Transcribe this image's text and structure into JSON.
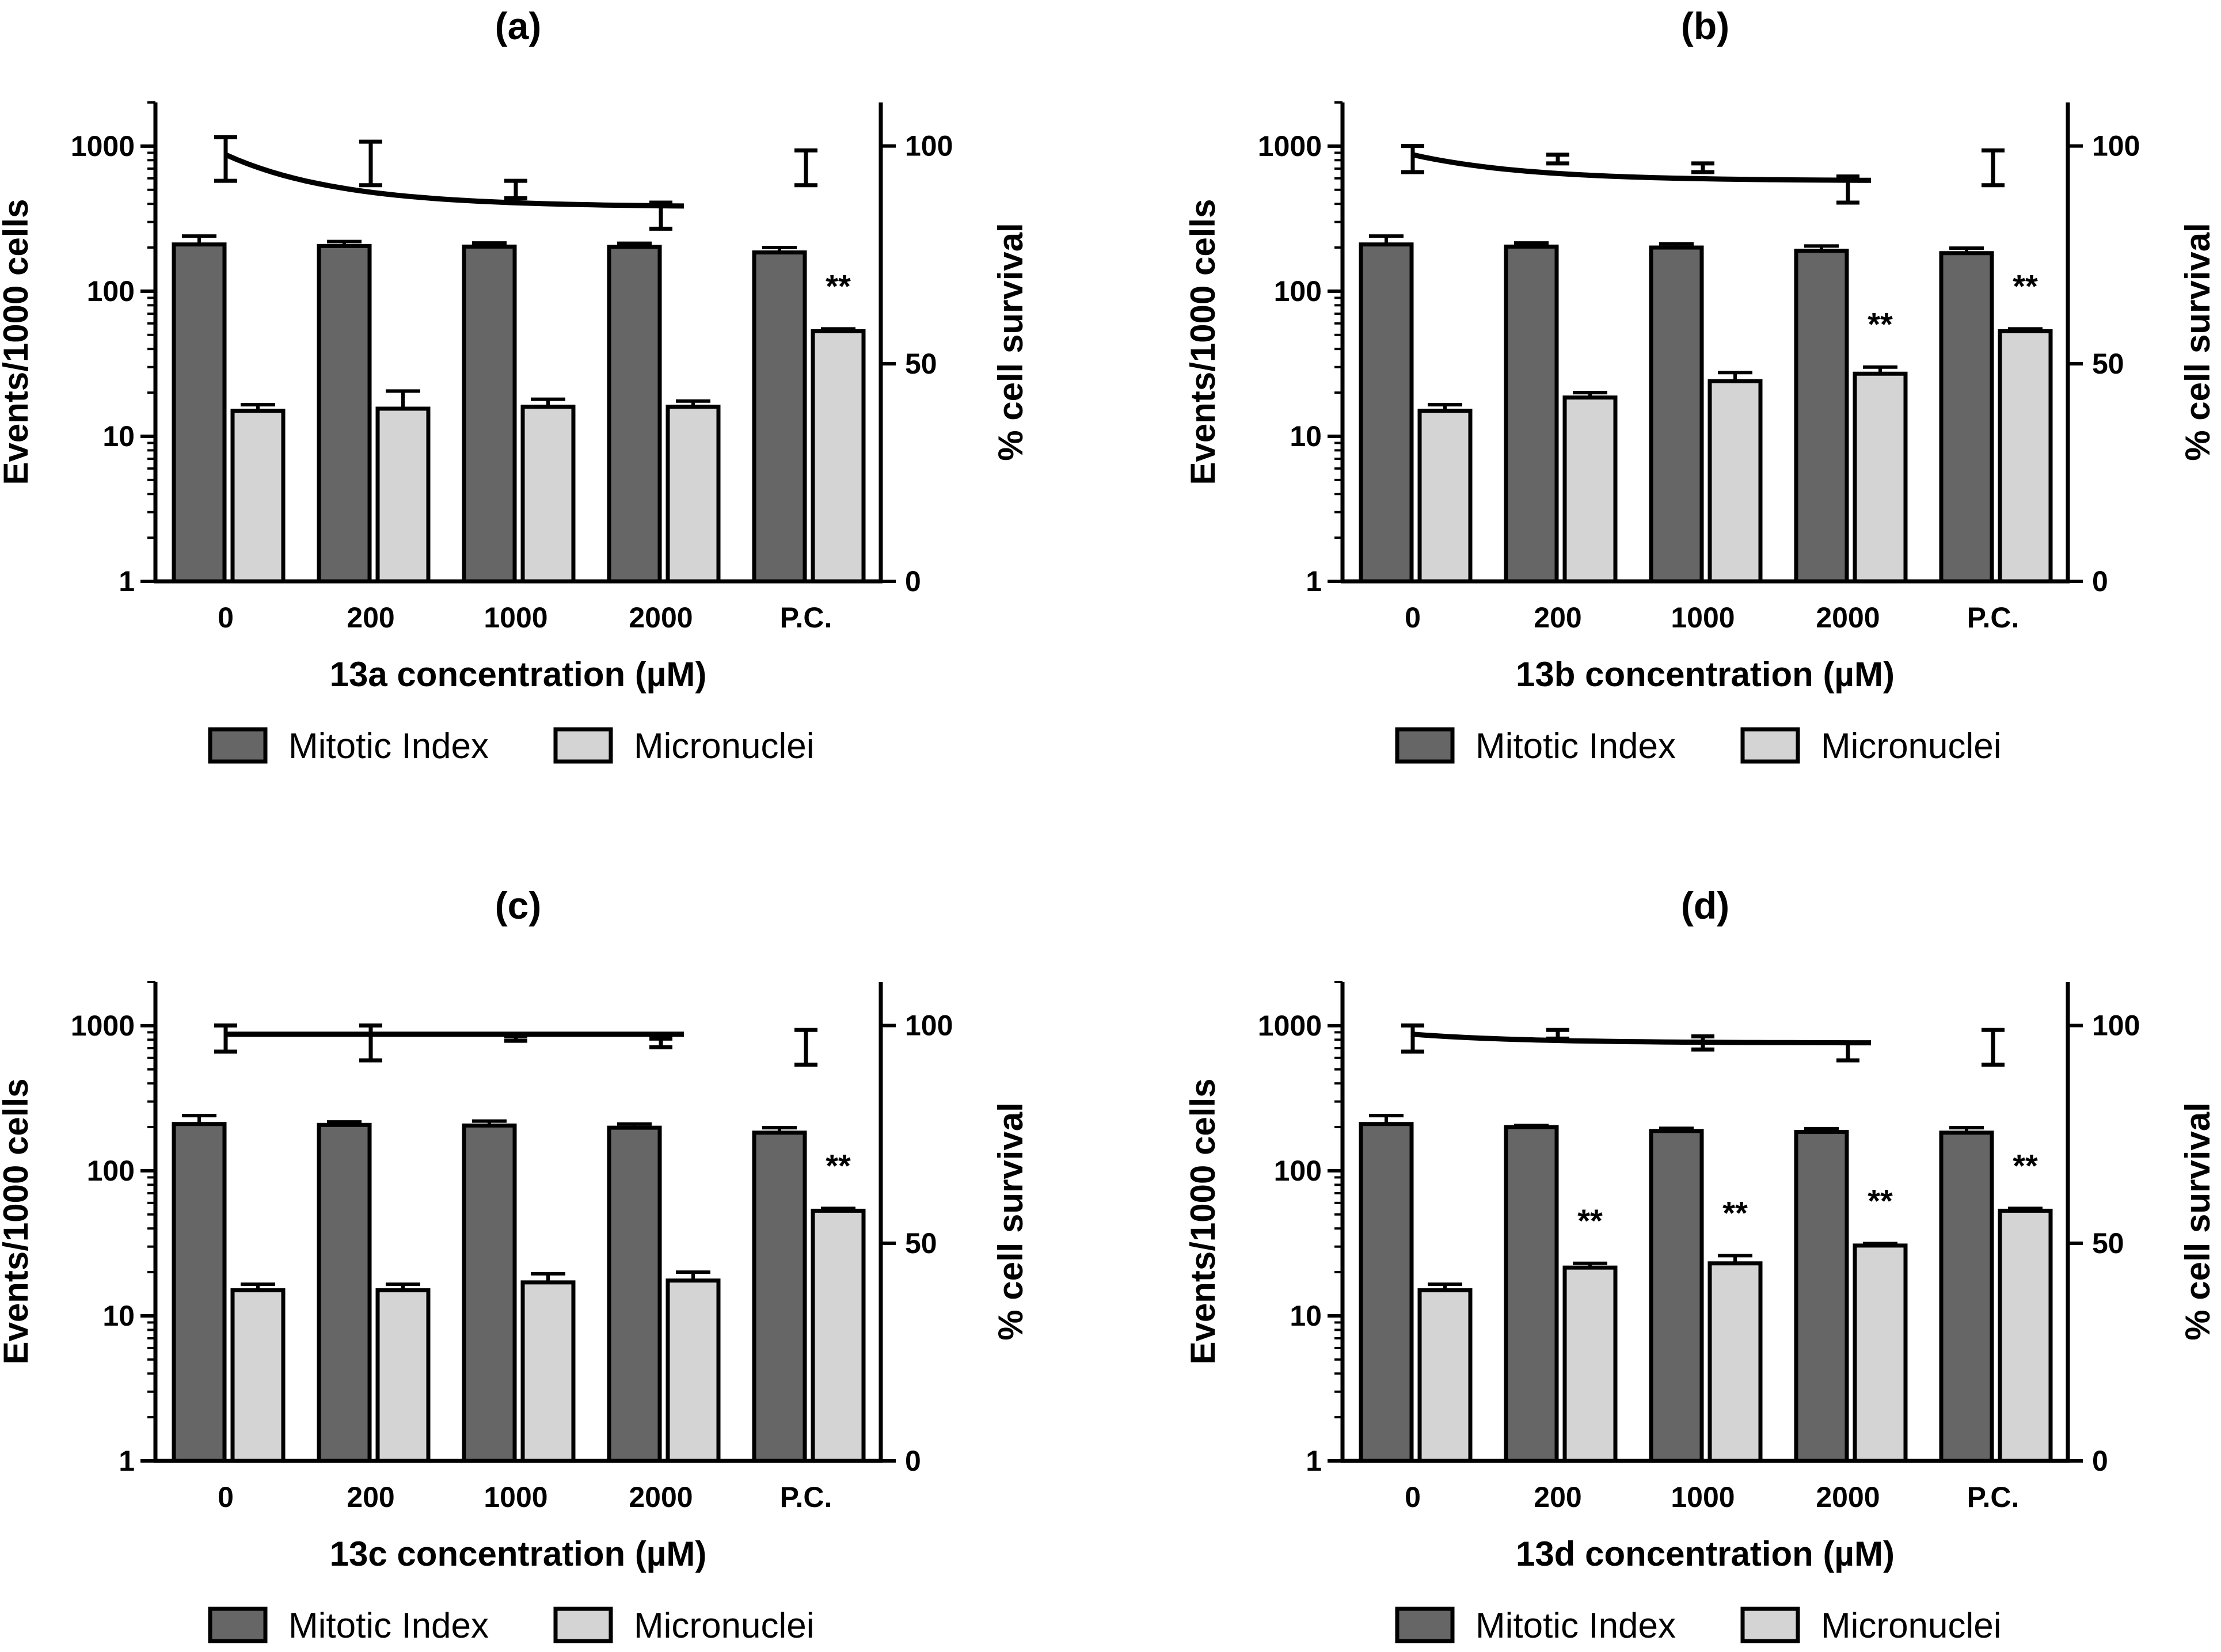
{
  "colors": {
    "mitotic_index": "#666666",
    "micronuclei": "#d4d4d4",
    "stroke": "#000000",
    "background": "#ffffff"
  },
  "chart_data": [
    {
      "type": "bar",
      "panel": "(a)",
      "title": "(a)",
      "xlabel": "13a concentration (µM)",
      "ylabel": "Events/1000 cells",
      "y2label": "% cell survival",
      "yscale": "log",
      "ylim": [
        1,
        2000
      ],
      "yticks": [
        "1",
        "10",
        "100",
        "1000"
      ],
      "y2lim": [
        0,
        110
      ],
      "y2ticks": [
        "0",
        "50",
        "100"
      ],
      "categories": [
        "0",
        "200",
        "1000",
        "2000",
        "P.C."
      ],
      "series": [
        {
          "name": "Mitotic Index",
          "values": [
            210,
            205,
            203,
            202,
            185
          ],
          "errors": [
            30,
            15,
            12,
            12,
            15
          ]
        },
        {
          "name": "Micronuclei",
          "values": [
            15,
            15.5,
            16,
            16,
            53
          ],
          "errors": [
            1.5,
            5,
            2,
            1.5,
            2
          ]
        }
      ],
      "significance": [
        "",
        "",
        "",
        "",
        "**"
      ],
      "survival": {
        "means": [
          97,
          96,
          90,
          84,
          95
        ],
        "errors": [
          5,
          5,
          2,
          3,
          4
        ],
        "fit_line_end": "2000"
      },
      "legend": [
        "Mitotic Index",
        "Micronuclei"
      ]
    },
    {
      "type": "bar",
      "panel": "(b)",
      "title": "(b)",
      "xlabel": "13b concentration (µM)",
      "ylabel": "Events/1000 cells",
      "y2label": "% cell survival",
      "yscale": "log",
      "ylim": [
        1,
        2000
      ],
      "yticks": [
        "1",
        "10",
        "100",
        "1000"
      ],
      "y2lim": [
        0,
        110
      ],
      "y2ticks": [
        "0",
        "50",
        "100"
      ],
      "categories": [
        "0",
        "200",
        "1000",
        "2000",
        "P.C."
      ],
      "series": [
        {
          "name": "Mitotic Index",
          "values": [
            210,
            203,
            200,
            190,
            183
          ],
          "errors": [
            30,
            12,
            12,
            15,
            15
          ]
        },
        {
          "name": "Micronuclei",
          "values": [
            15,
            18.5,
            24,
            27,
            53
          ],
          "errors": [
            1.5,
            1.5,
            3.5,
            3,
            2
          ]
        },
        {
          "name": "% cell survival",
          "values": [
            97,
            97,
            95,
            90,
            95
          ],
          "errors": [
            3,
            1,
            1,
            3,
            4
          ]
        }
      ],
      "significance": [
        "",
        "",
        "",
        "**",
        "**"
      ],
      "legend": [
        "Mitotic Index",
        "Micronuclei"
      ]
    },
    {
      "type": "bar",
      "panel": "(c)",
      "title": "(c)",
      "xlabel": "13c concentration (µM)",
      "ylabel": "Events/1000 cells",
      "y2label": "% cell survival",
      "yscale": "log",
      "ylim": [
        1,
        2000
      ],
      "yticks": [
        "1",
        "10",
        "100",
        "1000"
      ],
      "y2lim": [
        0,
        110
      ],
      "y2ticks": [
        "0",
        "50",
        "100"
      ],
      "categories": [
        "0",
        "200",
        "1000",
        "2000",
        "P.C."
      ],
      "series": [
        {
          "name": "Mitotic Index",
          "values": [
            210,
            207,
            205,
            198,
            183
          ],
          "errors": [
            30,
            10,
            15,
            12,
            15
          ]
        },
        {
          "name": "Micronuclei",
          "values": [
            15,
            15,
            17,
            17.5,
            53
          ],
          "errors": [
            1.5,
            1.5,
            2.5,
            2.5,
            2
          ]
        },
        {
          "name": "% cell survival",
          "values": [
            97,
            96,
            97,
            96,
            95
          ],
          "errors": [
            3,
            4,
            0.5,
            1,
            4
          ]
        }
      ],
      "significance": [
        "",
        "",
        "",
        "",
        "**"
      ],
      "legend": [
        "Mitotic Index",
        "Micronuclei"
      ]
    },
    {
      "type": "bar",
      "panel": "(d)",
      "title": "(d)",
      "xlabel": "13d concentration (µM)",
      "ylabel": "Events/1000 cells",
      "y2label": "% cell survival",
      "yscale": "log",
      "ylim": [
        1,
        2000
      ],
      "yticks": [
        "1",
        "10",
        "100",
        "1000"
      ],
      "y2lim": [
        0,
        110
      ],
      "y2ticks": [
        "0",
        "50",
        "100"
      ],
      "categories": [
        "0",
        "200",
        "1000",
        "2000",
        "P.C."
      ],
      "series": [
        {
          "name": "Mitotic Index",
          "values": [
            210,
            200,
            188,
            185,
            183
          ],
          "errors": [
            30,
            5,
            8,
            10,
            15
          ]
        },
        {
          "name": "Micronuclei",
          "values": [
            15,
            21.5,
            23,
            30.5,
            53
          ],
          "errors": [
            1.5,
            1.5,
            3,
            1,
            2
          ]
        },
        {
          "name": "% cell survival",
          "values": [
            97,
            98,
            96,
            94,
            95
          ],
          "errors": [
            3,
            1,
            1.5,
            2,
            4
          ]
        }
      ],
      "significance": [
        "",
        "**",
        "**",
        "**",
        "**"
      ],
      "legend": [
        "Mitotic Index",
        "Micronuclei"
      ]
    }
  ]
}
